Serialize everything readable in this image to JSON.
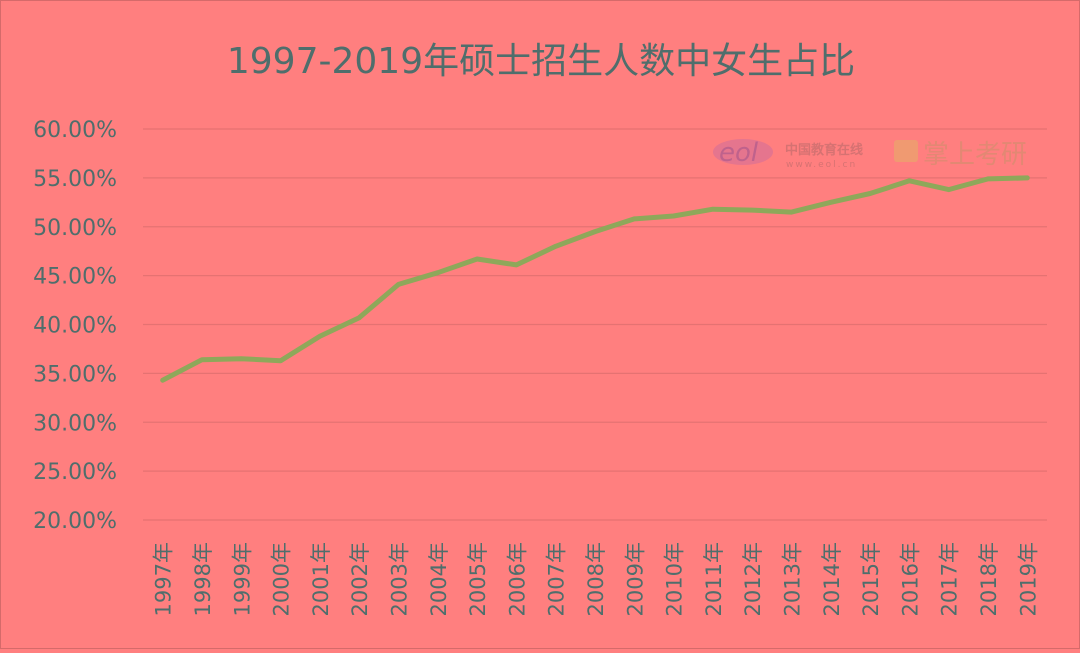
{
  "chart_data": {
    "type": "line",
    "title": "1997-2019年硕士招生人数中女生占比",
    "categories": [
      "1997年",
      "1998年",
      "1999年",
      "2000年",
      "2001年",
      "2002年",
      "2003年",
      "2004年",
      "2005年",
      "2006年",
      "2007年",
      "2008年",
      "2009年",
      "2010年",
      "2011年",
      "2012年",
      "2013年",
      "2014年",
      "2015年",
      "2016年",
      "2017年",
      "2018年",
      "2019年"
    ],
    "series": [
      {
        "values": [
          34.3,
          36.4,
          36.5,
          36.3,
          38.8,
          40.7,
          44.1,
          45.3,
          46.7,
          46.1,
          48.0,
          49.5,
          50.8,
          51.1,
          51.8,
          51.7,
          51.5,
          52.5,
          53.4,
          54.7,
          53.8,
          54.9,
          55.0
        ],
        "color": "#8ea85a"
      }
    ],
    "ylim": [
      20,
      60
    ],
    "yticks": [
      "20.00%",
      "25.00%",
      "30.00%",
      "35.00%",
      "40.00%",
      "45.00%",
      "50.00%",
      "55.00%",
      "60.00%"
    ],
    "grid": true,
    "background": "#ff7f7f",
    "text_color": "#4f6e6c"
  },
  "watermark": {
    "logo_text": "eol",
    "brand_cn": "中国教育在线",
    "url": "www.eol.cn",
    "brand2": "掌上考研"
  }
}
